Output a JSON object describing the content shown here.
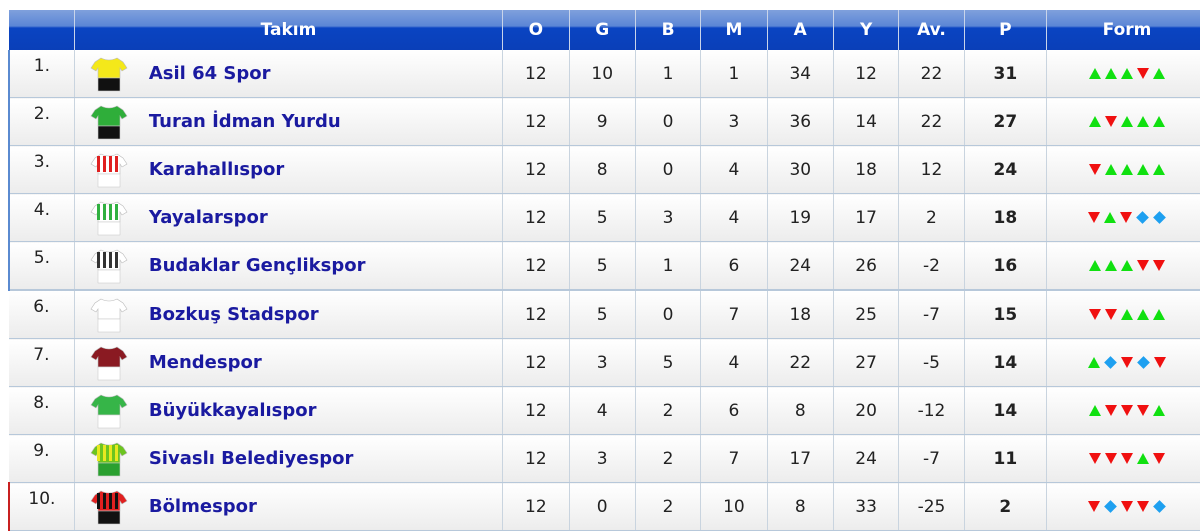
{
  "headers": {
    "rank": "",
    "team": "Takım",
    "o": "O",
    "g": "G",
    "b": "B",
    "m": "M",
    "a": "A",
    "y": "Y",
    "av": "Av.",
    "p": "P",
    "form": "Form"
  },
  "colors": {
    "form_win": "#10e010",
    "form_loss": "#f01010",
    "form_draw": "#1ea0f0",
    "header": "#0a44c2",
    "team_link": "#1a1aa0"
  },
  "rows": [
    {
      "rank": "1.",
      "team": "Asil 64 Spor",
      "o": "12",
      "g": "10",
      "b": "1",
      "m": "1",
      "a": "34",
      "y": "12",
      "av": "22",
      "p": "31",
      "form": [
        "up",
        "up",
        "up",
        "down",
        "up"
      ],
      "shirt": {
        "body": "#f4e81a",
        "shorts": "#111",
        "stripe": ""
      },
      "zone": "blue"
    },
    {
      "rank": "2.",
      "team": "Turan İdman Yurdu",
      "o": "12",
      "g": "9",
      "b": "0",
      "m": "3",
      "a": "36",
      "y": "14",
      "av": "22",
      "p": "27",
      "form": [
        "up",
        "down",
        "up",
        "up",
        "up"
      ],
      "shirt": {
        "body": "#2fae3a",
        "shorts": "#111",
        "stripe": ""
      },
      "zone": "blue"
    },
    {
      "rank": "3.",
      "team": "Karahallıspor",
      "o": "12",
      "g": "8",
      "b": "0",
      "m": "4",
      "a": "30",
      "y": "18",
      "av": "12",
      "p": "24",
      "form": [
        "down",
        "up",
        "up",
        "up",
        "up"
      ],
      "shirt": {
        "body": "#fff",
        "shorts": "#fff",
        "stripe": "#e02020"
      },
      "zone": "blue"
    },
    {
      "rank": "4.",
      "team": "Yayalarspor",
      "o": "12",
      "g": "5",
      "b": "3",
      "m": "4",
      "a": "19",
      "y": "17",
      "av": "2",
      "p": "18",
      "form": [
        "down",
        "up",
        "down",
        "draw",
        "draw"
      ],
      "shirt": {
        "body": "#fff",
        "shorts": "#fff",
        "stripe": "#30b040"
      },
      "zone": "blue"
    },
    {
      "rank": "5.",
      "team": "Budaklar Gençlikspor",
      "o": "12",
      "g": "5",
      "b": "1",
      "m": "6",
      "a": "24",
      "y": "26",
      "av": "-2",
      "p": "16",
      "form": [
        "up",
        "up",
        "up",
        "down",
        "down"
      ],
      "shirt": {
        "body": "#fff",
        "shorts": "#fff",
        "stripe": "#333"
      },
      "zone": "blue"
    },
    {
      "rank": "6.",
      "team": "Bozkuş Stadspor",
      "o": "12",
      "g": "5",
      "b": "0",
      "m": "7",
      "a": "18",
      "y": "25",
      "av": "-7",
      "p": "15",
      "form": [
        "down",
        "down",
        "up",
        "up",
        "up"
      ],
      "shirt": {
        "body": "#fff",
        "shorts": "#fff",
        "stripe": ""
      },
      "zone": "gap"
    },
    {
      "rank": "7.",
      "team": "Mendespor",
      "o": "12",
      "g": "3",
      "b": "5",
      "m": "4",
      "a": "22",
      "y": "27",
      "av": "-5",
      "p": "14",
      "form": [
        "up",
        "draw",
        "down",
        "draw",
        "down"
      ],
      "shirt": {
        "body": "#8a1a22",
        "shorts": "#fff",
        "stripe": ""
      },
      "zone": ""
    },
    {
      "rank": "8.",
      "team": "Büyükkayalıspor",
      "o": "12",
      "g": "4",
      "b": "2",
      "m": "6",
      "a": "8",
      "y": "20",
      "av": "-12",
      "p": "14",
      "form": [
        "up",
        "down",
        "down",
        "down",
        "up"
      ],
      "shirt": {
        "body": "#36b548",
        "shorts": "#fff",
        "stripe": ""
      },
      "zone": ""
    },
    {
      "rank": "9.",
      "team": "Sivaslı Belediyespor",
      "o": "12",
      "g": "3",
      "b": "2",
      "m": "7",
      "a": "17",
      "y": "24",
      "av": "-7",
      "p": "11",
      "form": [
        "down",
        "down",
        "down",
        "up",
        "down"
      ],
      "shirt": {
        "body": "#6cc420",
        "shorts": "#2aa030",
        "stripe": "#e8e820"
      },
      "zone": ""
    },
    {
      "rank": "10.",
      "team": "Bölmespor",
      "o": "12",
      "g": "0",
      "b": "2",
      "m": "10",
      "a": "8",
      "y": "33",
      "av": "-25",
      "p": "2",
      "form": [
        "down",
        "draw",
        "down",
        "down",
        "draw"
      ],
      "shirt": {
        "body": "#e02020",
        "shorts": "#111",
        "stripe": "#111"
      },
      "zone": "red"
    }
  ]
}
